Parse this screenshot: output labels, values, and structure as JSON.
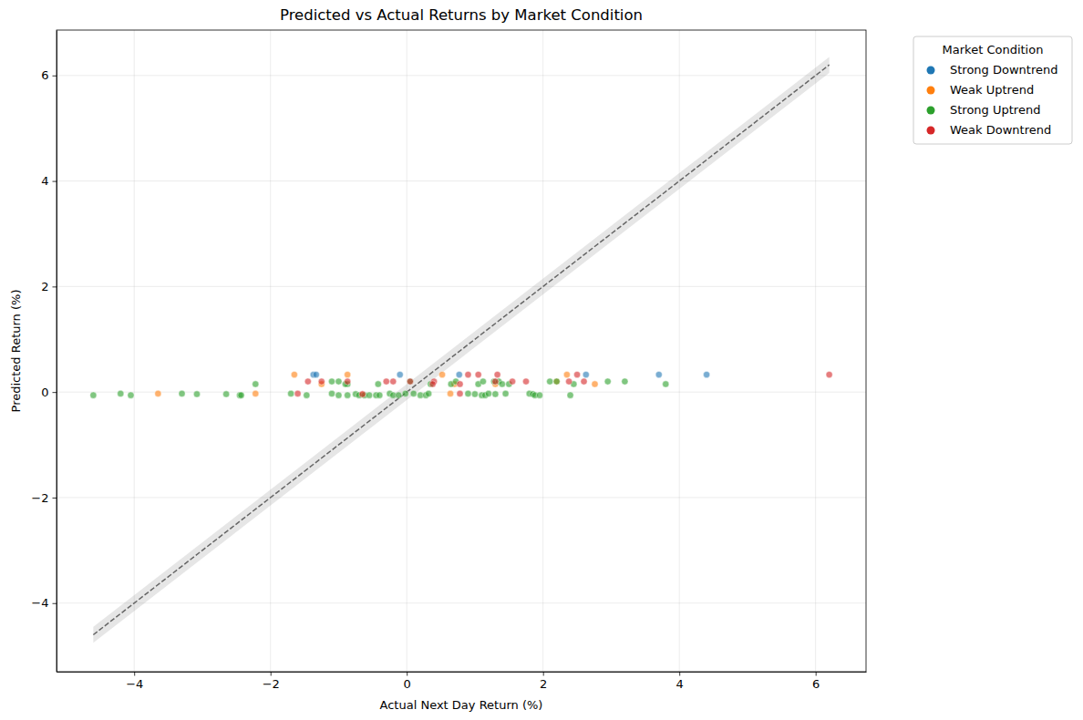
{
  "chart_data": {
    "type": "scatter",
    "title": "Predicted vs Actual Returns by Market Condition",
    "x_label": "Actual Next Day Return (%)",
    "y_label": "Predicted Return (%)",
    "legend_title": "Market Condition",
    "legend": "outside upper right",
    "grid": true,
    "marker": "circle",
    "xlim": [
      -5.14,
      6.74
    ],
    "ylim": [
      -5.3,
      6.86
    ],
    "xticks": [
      {
        "value": -4,
        "label": "−4"
      },
      {
        "value": -2,
        "label": "−2"
      },
      0,
      2,
      4,
      6
    ],
    "yticks": [
      {
        "value": -4,
        "label": "−4"
      },
      {
        "value": -2,
        "label": "−2"
      },
      0,
      2,
      4,
      6
    ],
    "identity_line": [
      -4.6,
      6.2
    ],
    "identity_band": 0.15,
    "series": [
      {
        "name": "Strong Downtrend",
        "color": "#1f77b4",
        "x": [
          -1.37,
          -1.33,
          -0.1,
          0.77,
          2.63,
          3.7,
          4.4
        ],
        "values": [
          0.33,
          0.33,
          0.33,
          0.33,
          0.33,
          0.33,
          0.33
        ]
      },
      {
        "name": "Weak Uptrend",
        "color": "#ff7f0e",
        "x": [
          -1.65,
          -0.87,
          0.52,
          2.35,
          -3.65,
          -2.22,
          0.64,
          2.76,
          -1.25,
          0.7,
          -0.65,
          1.3,
          2.2
        ],
        "values": [
          0.33,
          0.33,
          0.33,
          0.33,
          -0.03,
          -0.03,
          -0.03,
          0.15,
          0.15,
          0.15,
          -0.05,
          0.15,
          0.2
        ]
      },
      {
        "name": "Strong Uptrend",
        "color": "#2ca02c",
        "x": [
          -4.6,
          -4.2,
          -4.05,
          -3.3,
          -3.08,
          -2.65,
          -2.45,
          -2.43,
          -2.22,
          -1.7,
          -1.47,
          -1.1,
          -1.1,
          -1.0,
          -1.0,
          -0.87,
          -0.87,
          -0.75,
          -0.7,
          -0.62,
          -0.55,
          -0.45,
          -0.42,
          -0.4,
          -0.25,
          -0.2,
          -0.12,
          -0.02,
          0.05,
          0.1,
          0.2,
          0.28,
          0.32,
          0.35,
          0.65,
          0.72,
          0.9,
          1.0,
          1.05,
          1.1,
          1.12,
          1.15,
          1.2,
          1.28,
          1.3,
          1.35,
          1.4,
          1.45,
          1.5,
          1.8,
          1.85,
          1.88,
          1.95,
          2.1,
          2.2,
          2.4,
          2.45,
          2.95,
          3.2,
          3.8,
          -0.9
        ],
        "values": [
          -0.06,
          -0.03,
          -0.06,
          -0.03,
          -0.04,
          -0.04,
          -0.06,
          -0.06,
          0.15,
          -0.03,
          -0.06,
          -0.03,
          0.2,
          -0.06,
          0.2,
          -0.06,
          0.15,
          -0.04,
          -0.06,
          -0.06,
          -0.06,
          -0.06,
          0.15,
          -0.06,
          -0.03,
          -0.06,
          -0.06,
          -0.03,
          0.2,
          -0.03,
          -0.06,
          -0.06,
          -0.03,
          0.15,
          0.15,
          0.2,
          -0.03,
          -0.04,
          0.15,
          -0.06,
          0.2,
          -0.06,
          -0.03,
          0.2,
          -0.04,
          0.2,
          0.15,
          -0.03,
          0.15,
          -0.03,
          -0.04,
          -0.06,
          -0.06,
          0.2,
          0.2,
          -0.06,
          0.15,
          0.2,
          0.2,
          0.15,
          0.15
        ]
      },
      {
        "name": "Weak Downtrend",
        "color": "#d62728",
        "x": [
          -1.6,
          -1.45,
          -1.25,
          -0.87,
          -0.3,
          -0.2,
          0.05,
          0.4,
          0.78,
          0.78,
          0.9,
          1.05,
          1.3,
          1.33,
          1.55,
          1.75,
          2.38,
          2.5,
          2.6,
          6.2,
          -0.65,
          0.38
        ],
        "values": [
          -0.03,
          0.2,
          0.2,
          0.2,
          0.2,
          0.2,
          0.2,
          0.2,
          -0.03,
          0.15,
          0.33,
          0.33,
          0.2,
          0.33,
          0.2,
          0.2,
          0.2,
          0.33,
          0.2,
          0.33,
          -0.04,
          0.15
        ]
      }
    ]
  }
}
